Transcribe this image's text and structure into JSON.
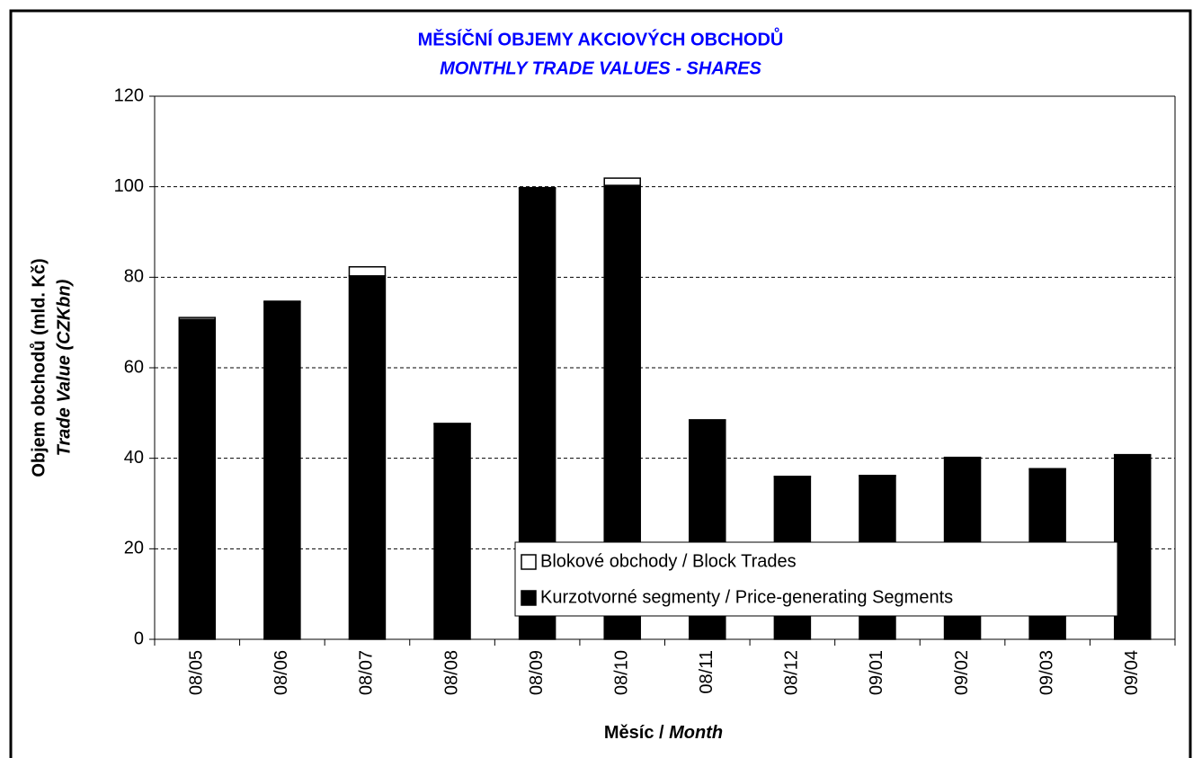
{
  "chart_data": {
    "type": "stacked_bar",
    "title": [
      "MĚSÍČNÍ OBJEMY AKCIOVÝCH OBCHODŮ",
      "MONTHLY TRADE VALUES - SHARES"
    ],
    "y_label": [
      "Objem obchodů (mld. Kč)",
      "Trade Value (CZKbn)"
    ],
    "x_label": [
      "Měsíc /",
      "Month"
    ],
    "categories": [
      "08/05",
      "08/06",
      "08/07",
      "08/08",
      "08/09",
      "08/10",
      "08/11",
      "08/12",
      "09/01",
      "09/02",
      "09/03",
      "09/04"
    ],
    "series": [
      {
        "name": "Kurzotvorné segmenty / Price-generating Segments",
        "color": "#000000",
        "values": [
          70.7,
          74.5,
          80.3,
          47.6,
          99.6,
          100.3,
          48.4,
          35.9,
          36.1,
          40.1,
          37.6,
          40.7
        ]
      },
      {
        "name": "Blokové obchody / Block Trades",
        "color": "#ffffff",
        "values": [
          0.4,
          0.2,
          2.0,
          0.1,
          0.2,
          1.6,
          0.1,
          0.1,
          0.1,
          0.1,
          0.1,
          0.1
        ]
      }
    ],
    "ylim": [
      0,
      120
    ],
    "yticks": [
      0,
      20,
      40,
      60,
      80,
      100,
      120
    ],
    "grid": true
  }
}
